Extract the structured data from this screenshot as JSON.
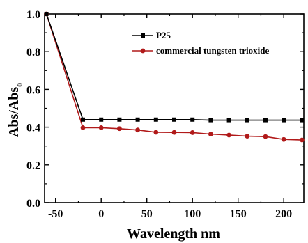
{
  "chart_data": {
    "type": "line",
    "xlabel": "Wavelength nm",
    "ylabel": "Abs/Abs",
    "ylabel_subscript": "0",
    "xlim": [
      -62,
      222
    ],
    "ylim": [
      0.0,
      1.0
    ],
    "xticks": [
      -50,
      0,
      50,
      100,
      150,
      200
    ],
    "yticks": [
      0.0,
      0.2,
      0.4,
      0.6,
      0.8,
      1.0
    ],
    "ytick_labels": [
      "0.0",
      "0.2",
      "0.4",
      "0.6",
      "0.8",
      "1.0"
    ],
    "legend_position": "top-right",
    "grid": false,
    "series": [
      {
        "name": "P25",
        "color": "#000000",
        "marker": "square",
        "x": [
          -60,
          -20,
          0,
          20,
          40,
          60,
          80,
          100,
          120,
          140,
          160,
          180,
          200,
          220
        ],
        "y": [
          1.0,
          0.44,
          0.44,
          0.44,
          0.44,
          0.44,
          0.44,
          0.44,
          0.437,
          0.437,
          0.437,
          0.437,
          0.437,
          0.437
        ]
      },
      {
        "name": "commercial tungsten trioxide",
        "color": "#b11a1a",
        "marker": "circle",
        "x": [
          -60,
          -20,
          0,
          20,
          40,
          60,
          80,
          100,
          120,
          140,
          160,
          180,
          200,
          220
        ],
        "y": [
          1.0,
          0.397,
          0.397,
          0.392,
          0.385,
          0.373,
          0.372,
          0.371,
          0.363,
          0.358,
          0.352,
          0.35,
          0.335,
          0.332
        ]
      }
    ]
  }
}
